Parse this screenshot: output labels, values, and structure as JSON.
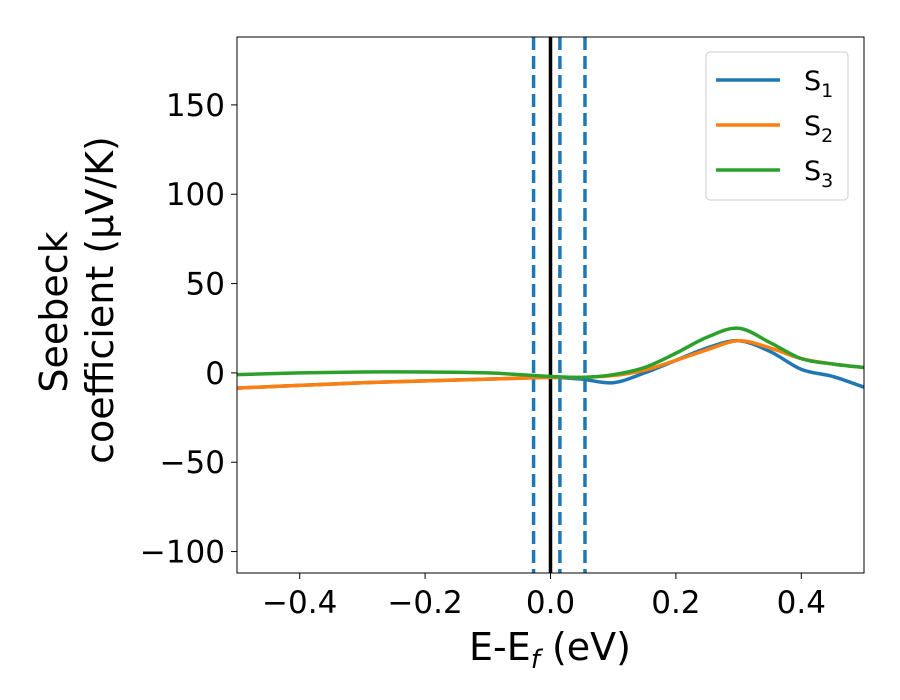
{
  "chart_data": {
    "type": "line",
    "title": "",
    "xlabel": "E-E",
    "xlabel_sub": "f",
    "xlabel_unit": " (eV)",
    "ylabel_lines": [
      "Seebeck",
      "coefficient  (μV/K)"
    ],
    "xlim": [
      -0.5,
      0.5
    ],
    "ylim": [
      -112,
      188
    ],
    "xticks": [
      -0.4,
      -0.2,
      0.0,
      0.2,
      0.4
    ],
    "xtick_labels": [
      "−0.4",
      "−0.2",
      "0.0",
      "0.2",
      "0.4"
    ],
    "yticks": [
      -100,
      -50,
      0,
      50,
      100,
      150
    ],
    "ytick_labels": [
      "−100",
      "−50",
      "0",
      "50",
      "100",
      "150"
    ],
    "grid": false,
    "legend_position": "top-right",
    "vlines": [
      {
        "x": 0.0,
        "style": "solid",
        "color": "#000000"
      },
      {
        "x": -0.027,
        "style": "dashed",
        "color": "#1f77b4"
      },
      {
        "x": 0.015,
        "style": "dashed",
        "color": "#1f77b4"
      },
      {
        "x": 0.055,
        "style": "dashed",
        "color": "#1f77b4"
      }
    ],
    "series": [
      {
        "name": "S",
        "sub": "1",
        "color": "#1f77b4",
        "x": [
          -0.5,
          -0.4,
          -0.3,
          -0.2,
          -0.1,
          -0.05,
          0.0,
          0.05,
          0.1,
          0.15,
          0.2,
          0.25,
          0.3,
          0.35,
          0.4,
          0.45,
          0.5
        ],
        "y": [
          -8.5,
          -7,
          -5.5,
          -4.5,
          -3.5,
          -3,
          -2.5,
          -3.5,
          -5.5,
          0,
          7,
          14,
          18,
          12,
          2,
          -2,
          -8
        ]
      },
      {
        "name": "S",
        "sub": "2",
        "color": "#ff7f0e",
        "x": [
          -0.5,
          -0.4,
          -0.3,
          -0.2,
          -0.1,
          -0.05,
          0.0,
          0.05,
          0.1,
          0.15,
          0.2,
          0.25,
          0.3,
          0.35,
          0.4,
          0.45,
          0.5
        ],
        "y": [
          -8.5,
          -7,
          -5.5,
          -4.5,
          -3.5,
          -3,
          -2.5,
          -2.5,
          -1.5,
          1.5,
          7,
          13,
          18,
          14,
          8,
          5,
          3
        ]
      },
      {
        "name": "S",
        "sub": "3",
        "color": "#2ca02c",
        "x": [
          -0.5,
          -0.4,
          -0.3,
          -0.2,
          -0.1,
          -0.05,
          0.0,
          0.05,
          0.1,
          0.15,
          0.2,
          0.25,
          0.3,
          0.35,
          0.4,
          0.45,
          0.5
        ],
        "y": [
          -1,
          0,
          0.5,
          0.5,
          0,
          -1,
          -2,
          -2.5,
          -1,
          3,
          11,
          20,
          25,
          17,
          8,
          5,
          3
        ]
      }
    ]
  }
}
